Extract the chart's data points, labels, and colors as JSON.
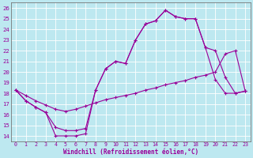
{
  "xlabel": "Windchill (Refroidissement éolien,°C)",
  "bg_color": "#bde8f0",
  "grid_color": "#ffffff",
  "line_color": "#990099",
  "xlim": [
    -0.5,
    23.5
  ],
  "ylim": [
    13.5,
    26.5
  ],
  "xticks": [
    0,
    1,
    2,
    3,
    4,
    5,
    6,
    7,
    8,
    9,
    10,
    11,
    12,
    13,
    14,
    15,
    16,
    17,
    18,
    19,
    20,
    21,
    22,
    23
  ],
  "yticks": [
    14,
    15,
    16,
    17,
    18,
    19,
    20,
    21,
    22,
    23,
    24,
    25,
    26
  ],
  "line1_x": [
    0,
    1,
    2,
    3,
    4,
    5,
    6,
    7,
    8,
    9,
    10,
    11,
    12,
    13,
    14,
    15,
    16,
    17,
    18,
    19,
    20,
    21,
    22,
    23
  ],
  "line1_y": [
    18.3,
    17.3,
    16.7,
    16.2,
    14.0,
    14.0,
    14.0,
    14.2,
    18.3,
    20.3,
    21.0,
    20.8,
    23.0,
    24.5,
    24.8,
    25.8,
    25.2,
    25.0,
    25.0,
    22.3,
    19.3,
    18.0,
    18.0,
    18.2
  ],
  "line2_x": [
    0,
    1,
    2,
    3,
    4,
    5,
    6,
    7,
    8,
    9,
    10,
    11,
    12,
    13,
    14,
    15,
    16,
    17,
    18,
    19,
    20,
    21,
    22,
    23
  ],
  "line2_y": [
    18.3,
    17.3,
    16.7,
    16.2,
    14.8,
    14.5,
    14.5,
    14.7,
    18.3,
    20.3,
    21.0,
    20.8,
    23.0,
    24.5,
    24.8,
    25.8,
    25.2,
    25.0,
    25.0,
    22.3,
    22.0,
    19.5,
    18.0,
    18.2
  ],
  "line3_x": [
    0,
    1,
    2,
    3,
    4,
    5,
    6,
    7,
    8,
    9,
    10,
    11,
    12,
    13,
    14,
    15,
    16,
    17,
    18,
    19,
    20,
    21,
    22,
    23
  ],
  "line3_y": [
    18.3,
    17.8,
    17.3,
    16.9,
    16.5,
    16.3,
    16.5,
    16.8,
    17.1,
    17.4,
    17.6,
    17.8,
    18.0,
    18.3,
    18.5,
    18.8,
    19.0,
    19.2,
    19.5,
    19.7,
    20.0,
    21.7,
    22.0,
    18.2
  ]
}
